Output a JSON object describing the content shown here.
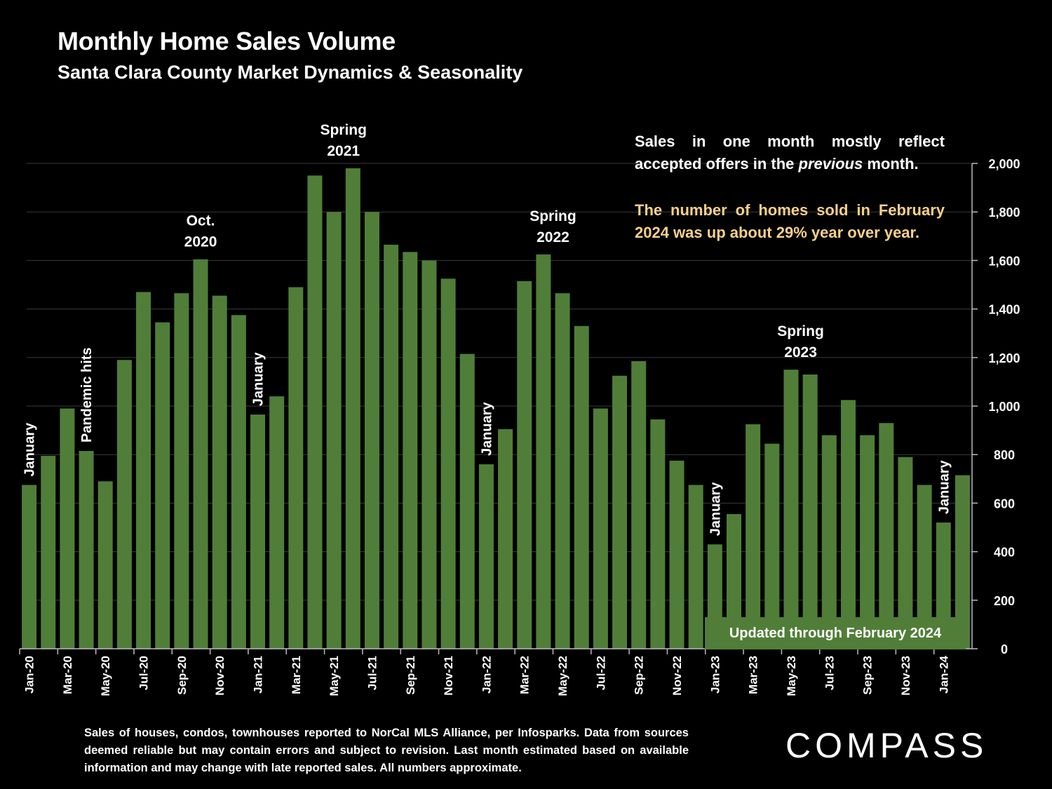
{
  "header": {
    "title": "Monthly Home Sales Volume",
    "subtitle": "Santa Clara County Market Dynamics & Seasonality"
  },
  "notes": {
    "note1_a": "Sales in one month mostly reflect accepted offers in the ",
    "note1_em": "previous",
    "note1_b": " month.",
    "note2": "The number of homes sold in February 2024 was up about 29% year over year."
  },
  "badge": {
    "updated": "Updated through February 2024"
  },
  "footer": {
    "source": "Sales of houses, condos, townhouses reported to NorCal MLS Alliance, per Infosparks. Data from sources deemed reliable but may contain errors and subject to revision. Last month estimated based on available information and may change with late reported sales. All numbers approximate."
  },
  "brand": {
    "logo_text": "COMPASS"
  },
  "colors": {
    "bar": "#507e38",
    "background": "#000000",
    "highlight": "#f7d08a",
    "grid": "#3a3a3a"
  },
  "chart_data": {
    "type": "bar",
    "title": "Monthly Home Sales Volume",
    "ylim": [
      0,
      2000
    ],
    "yticks": [
      0,
      200,
      400,
      600,
      800,
      1000,
      1200,
      1400,
      1600,
      1800,
      2000
    ],
    "ytick_labels": [
      "0",
      "200",
      "400",
      "600",
      "800",
      "1,000",
      "1,200",
      "1,400",
      "1,600",
      "1,800",
      "2,000"
    ],
    "grid": true,
    "y_axis_side": "right",
    "categories": [
      "Jan-20",
      "Feb-20",
      "Mar-20",
      "Apr-20",
      "May-20",
      "Jun-20",
      "Jul-20",
      "Aug-20",
      "Sep-20",
      "Oct-20",
      "Nov-20",
      "Dec-20",
      "Jan-21",
      "Feb-21",
      "Mar-21",
      "Apr-21",
      "May-21",
      "Jun-21",
      "Jul-21",
      "Aug-21",
      "Sep-21",
      "Oct-21",
      "Nov-21",
      "Dec-21",
      "Jan-22",
      "Feb-22",
      "Mar-22",
      "Apr-22",
      "May-22",
      "Jun-22",
      "Jul-22",
      "Aug-22",
      "Sep-22",
      "Oct-22",
      "Nov-22",
      "Dec-22",
      "Jan-23",
      "Feb-23",
      "Mar-23",
      "Apr-23",
      "May-23",
      "Jun-23",
      "Jul-23",
      "Aug-23",
      "Sep-23",
      "Oct-23",
      "Nov-23",
      "Dec-23",
      "Jan-24",
      "Feb-24"
    ],
    "xtick_labels": [
      "Jan-20",
      "",
      "Mar-20",
      "",
      "May-20",
      "",
      "Jul-20",
      "",
      "Sep-20",
      "",
      "Nov-20",
      "",
      "Jan-21",
      "",
      "Mar-21",
      "",
      "May-21",
      "",
      "Jul-21",
      "",
      "Sep-21",
      "",
      "Nov-21",
      "",
      "Jan-22",
      "",
      "Mar-22",
      "",
      "May-22",
      "",
      "Jul-22",
      "",
      "Sep-22",
      "",
      "Nov-22",
      "",
      "Jan-23",
      "",
      "Mar-23",
      "",
      "May-23",
      "",
      "Jul-23",
      "",
      "Sep-23",
      "",
      "Nov-23",
      "",
      "Jan-24",
      ""
    ],
    "values": [
      675,
      795,
      990,
      815,
      690,
      1190,
      1470,
      1345,
      1465,
      1605,
      1455,
      1375,
      965,
      1040,
      1490,
      1950,
      1800,
      1980,
      1800,
      1665,
      1635,
      1600,
      1525,
      1215,
      760,
      905,
      1515,
      1625,
      1465,
      1330,
      990,
      1125,
      1185,
      945,
      775,
      675,
      430,
      555,
      925,
      845,
      1150,
      1130,
      880,
      1025,
      880,
      930,
      790,
      675,
      520,
      715
    ],
    "annotations": [
      {
        "index": 0,
        "text": [
          "January"
        ],
        "rotated": true
      },
      {
        "index": 3,
        "text": [
          "Pandemic hits"
        ],
        "rotated": true
      },
      {
        "index": 9,
        "text": [
          "Oct.",
          "2020"
        ],
        "rotated": false
      },
      {
        "index": 12,
        "text": [
          "January"
        ],
        "rotated": true
      },
      {
        "index": 16.5,
        "text": [
          "Spring",
          "2021"
        ],
        "rotated": false
      },
      {
        "index": 24,
        "text": [
          "January"
        ],
        "rotated": true
      },
      {
        "index": 27.5,
        "text": [
          "Spring",
          "2022"
        ],
        "rotated": false
      },
      {
        "index": 36,
        "text": [
          "January"
        ],
        "rotated": true
      },
      {
        "index": 40.5,
        "text": [
          "Spring",
          "2023"
        ],
        "rotated": false
      },
      {
        "index": 48,
        "text": [
          "January"
        ],
        "rotated": true
      }
    ]
  }
}
